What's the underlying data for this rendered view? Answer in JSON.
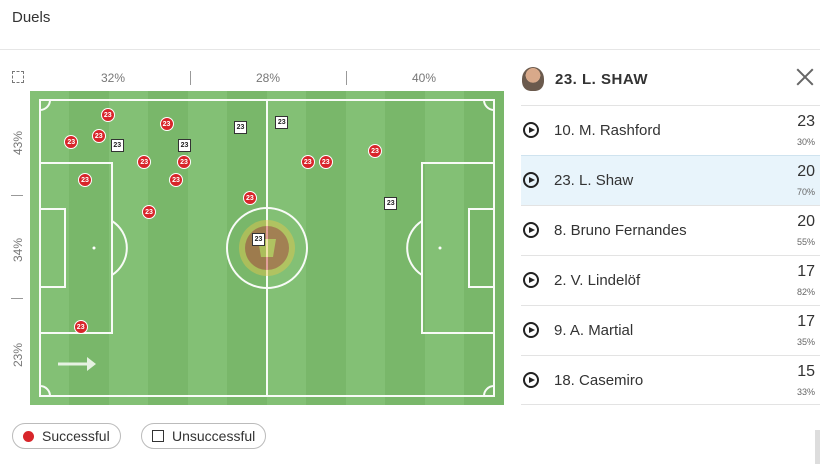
{
  "panel": {
    "title": "Duels"
  },
  "pitch": {
    "col_percents": [
      "32%",
      "28%",
      "40%"
    ],
    "row_percents": [
      "43%",
      "34%",
      "23%"
    ],
    "colors": {
      "grass_dark": "#79b76a",
      "grass_light": "#83c075",
      "success": "#d8252a",
      "unsuccessful": "#ffffff"
    },
    "markers": [
      {
        "label": "23",
        "result": "success",
        "x": 0.164,
        "y": 0.076
      },
      {
        "label": "23",
        "result": "success",
        "x": 0.145,
        "y": 0.143
      },
      {
        "label": "23",
        "result": "success",
        "x": 0.087,
        "y": 0.162
      },
      {
        "label": "23",
        "result": "fail",
        "x": 0.183,
        "y": 0.172
      },
      {
        "label": "23",
        "result": "success",
        "x": 0.288,
        "y": 0.105
      },
      {
        "label": "23",
        "result": "fail",
        "x": 0.325,
        "y": 0.172
      },
      {
        "label": "23",
        "result": "success",
        "x": 0.241,
        "y": 0.226
      },
      {
        "label": "23",
        "result": "success",
        "x": 0.325,
        "y": 0.226
      },
      {
        "label": "23",
        "result": "success",
        "x": 0.116,
        "y": 0.283
      },
      {
        "label": "23",
        "result": "success",
        "x": 0.308,
        "y": 0.283
      },
      {
        "label": "23",
        "result": "success",
        "x": 0.251,
        "y": 0.385
      },
      {
        "label": "23",
        "result": "fail",
        "x": 0.443,
        "y": 0.115
      },
      {
        "label": "23",
        "result": "fail",
        "x": 0.53,
        "y": 0.099
      },
      {
        "label": "23",
        "result": "success",
        "x": 0.464,
        "y": 0.341
      },
      {
        "label": "23",
        "result": "fail",
        "x": 0.481,
        "y": 0.471
      },
      {
        "label": "23",
        "result": "success",
        "x": 0.586,
        "y": 0.226
      },
      {
        "label": "23",
        "result": "success",
        "x": 0.624,
        "y": 0.226
      },
      {
        "label": "23",
        "result": "success",
        "x": 0.728,
        "y": 0.191
      },
      {
        "label": "23",
        "result": "fail",
        "x": 0.76,
        "y": 0.357
      },
      {
        "label": "23",
        "result": "success",
        "x": 0.107,
        "y": 0.752
      }
    ]
  },
  "legend": {
    "successful": "Successful",
    "unsuccessful": "Unsuccessful"
  },
  "player": {
    "name": "23. L. SHAW",
    "avatar_icon": "player-avatar-icon"
  },
  "players": [
    {
      "name": "10. M. Rashford",
      "value": "23",
      "pct": "30%"
    },
    {
      "name": "23. L. Shaw",
      "value": "20",
      "pct": "70%",
      "selected": true
    },
    {
      "name": "8. Bruno Fernandes",
      "value": "20",
      "pct": "55%"
    },
    {
      "name": "2. V. Lindelöf",
      "value": "17",
      "pct": "82%"
    },
    {
      "name": "9. A. Martial",
      "value": "17",
      "pct": "35%"
    },
    {
      "name": "18. Casemiro",
      "value": "15",
      "pct": "33%"
    }
  ]
}
